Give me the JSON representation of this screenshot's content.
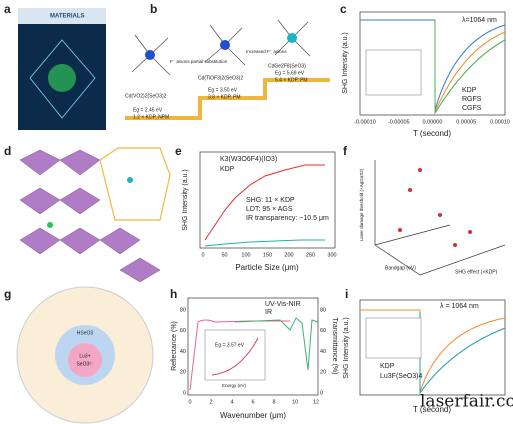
{
  "panels": {
    "a": {
      "label": "a",
      "journal": "MATERIALS"
    },
    "b": {
      "label": "b",
      "compounds": [
        "Cd(VO2)2(SeO3)2",
        "Cd(TiOF3)2(SeO3)2",
        "CdGe2F8(SeO3)"
      ],
      "notes": [
        "F⁻ anions partial substitution",
        "Increased F⁻ anions"
      ],
      "props": [
        [
          "Eg = 2.45 eV",
          "1.2 × KDP, NPM"
        ],
        [
          "Eg = 3.50 eV",
          "3.8 × KDP, PM"
        ],
        [
          "Eg = 5.69 eV",
          "5.4 × KDP, PM"
        ]
      ]
    },
    "c": {
      "label": "c",
      "wavelength": "λ=1064 nm",
      "ylabel": "SHG Intensity (a.u.)",
      "xlabel": "T (second)",
      "xticks": [
        "-0.00010",
        "-0.00005",
        "0.00000",
        "0.00005",
        "0.00010"
      ],
      "legend": [
        "KDP",
        "RGFS",
        "CGFS"
      ]
    },
    "d": {
      "label": "d"
    },
    "e": {
      "label": "e",
      "legend": [
        "K3(W3O6F4)(IO3)",
        "KDP"
      ],
      "notes": [
        "SHG: 11 × KDP",
        "LDT: 95 × AGS",
        "IR transparency: ~10.5 μm"
      ],
      "ylabel": "SHG Intensity (a.u.)",
      "xlabel": "Particle Size (μm)",
      "xticks": [
        "0",
        "50",
        "100",
        "150",
        "200",
        "250",
        "300"
      ]
    },
    "f": {
      "label": "f",
      "axes": [
        "Laser damage threshold (×AgGaS2)",
        "Bandgap (eV)",
        "SHG effect (×KDP)"
      ]
    },
    "g": {
      "label": "g",
      "texts": [
        "HSeO3",
        "Lu3+",
        "SeO3²⁻"
      ]
    },
    "h": {
      "label": "h",
      "legend": [
        "UV-Vis-NIR",
        "IR"
      ],
      "ylabel": "Reflectance (%)",
      "y2label": "Transmittance (%)",
      "xlabel": "Wavenumber (μm)",
      "xticks": [
        "0",
        "2",
        "4",
        "6",
        "8",
        "10",
        "12"
      ],
      "yticks": [
        "0",
        "20",
        "40",
        "60",
        "80"
      ],
      "y2ticks": [
        "0",
        "20",
        "40",
        "60",
        "80"
      ],
      "inset": [
        "Eg = 3.57 eV",
        "Energy (eV)"
      ]
    },
    "i": {
      "label": "i",
      "wavelength": "λ = 1064 nm",
      "legend": [
        "KDP",
        "Lu3F(SeO3)4"
      ],
      "ylabel": "SHG Intensity (a.u.)",
      "xlabel": "T (second)",
      "watermark": "laserfair.com"
    }
  }
}
